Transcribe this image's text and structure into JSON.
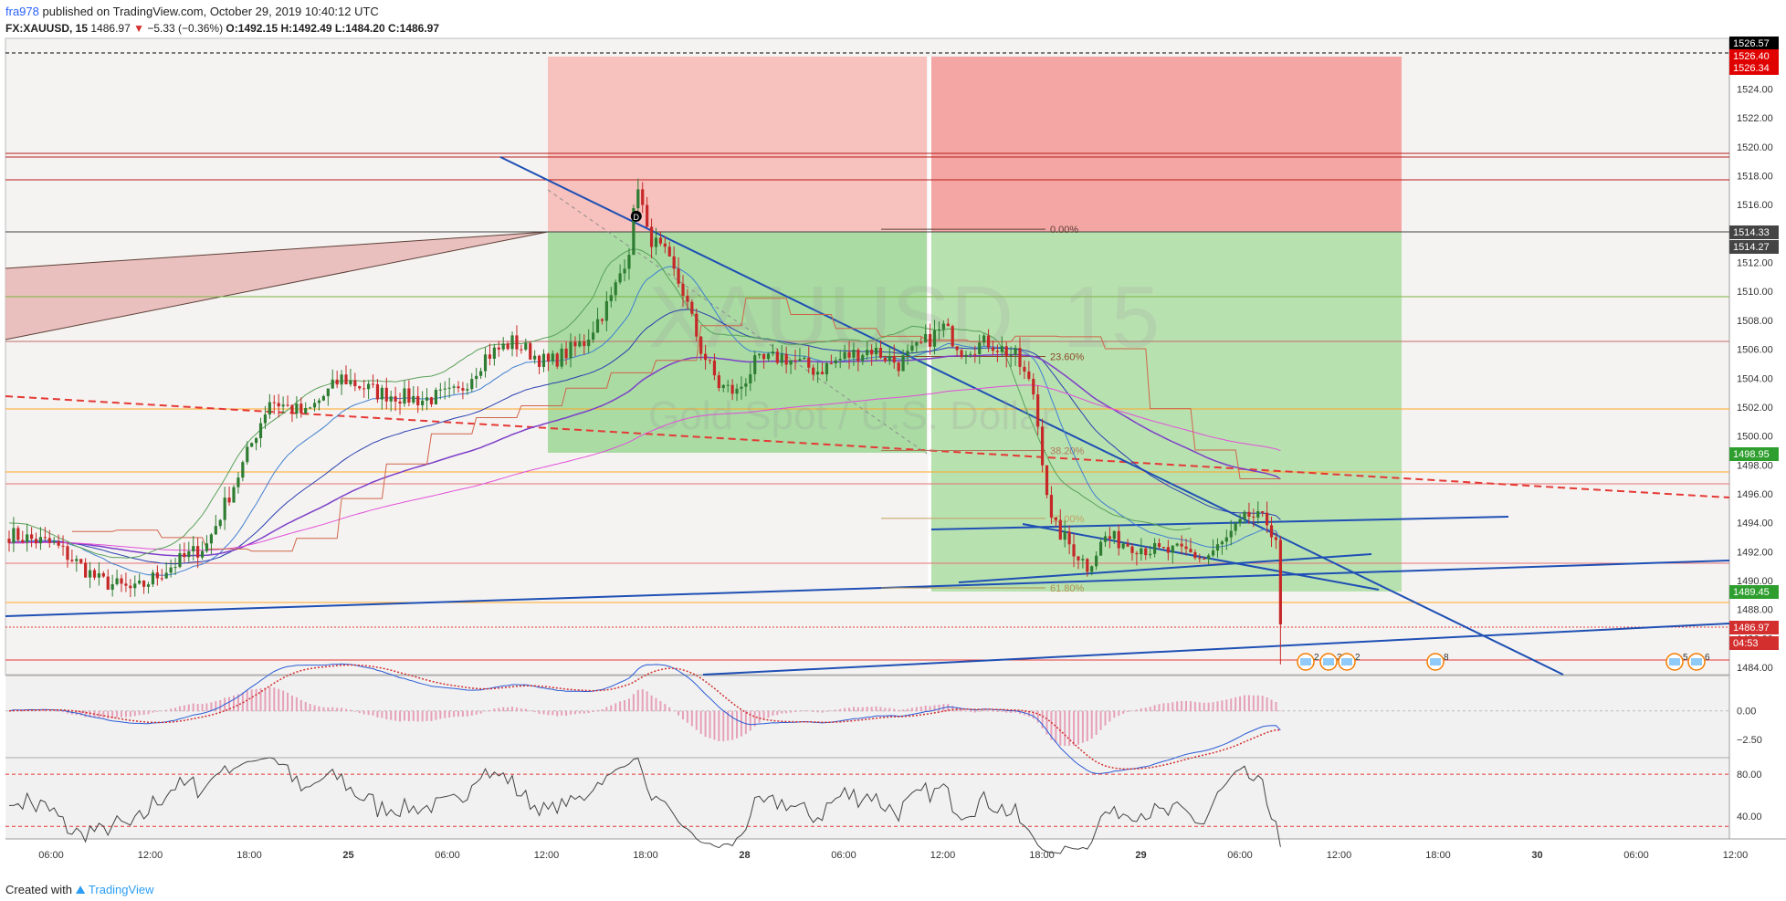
{
  "header": {
    "publisher": "fra978",
    "published_text": "published on TradingView.com, October 29, 2019 10:40:12 UTC",
    "symbol": "FX:XAUUSD, 15",
    "last": "1486.97",
    "change": "−5.33 (−0.36%)",
    "o_label": "O:",
    "o": "1492.15",
    "h_label": "H:",
    "h": "1492.49",
    "l_label": "L:",
    "l": "1484.20",
    "c_label": "C:",
    "c": "1486.97"
  },
  "watermark": {
    "symbol": "XAUUSD, 15",
    "desc": "Gold Spot / U.S. Dollar"
  },
  "footer": {
    "created_with": "Created with",
    "brand": "TradingView"
  },
  "colors": {
    "bull": "#2e7d32",
    "bear": "#c62828",
    "trend": "#1e4fb4",
    "stop_zone": "#f4a6a4",
    "target_zone": "#a9dba3",
    "rsi_line": "#444444"
  },
  "chart_data": [
    {
      "type": "candlestick",
      "pane": "price",
      "x_tick_labels": [
        "06:00",
        "12:00",
        "18:00",
        "25",
        "06:00",
        "12:00",
        "18:00",
        "28",
        "06:00",
        "12:00",
        "18:00",
        "29",
        "06:00",
        "12:00",
        "18:00",
        "30",
        "06:00",
        "12:00"
      ],
      "y_tick_labels": [
        "1484.00",
        "1486.00",
        "1488.00",
        "1490.00",
        "1492.00",
        "1494.00",
        "1496.00",
        "1498.00",
        "1500.00",
        "1502.00",
        "1504.00",
        "1506.00",
        "1508.00",
        "1510.00",
        "1512.00",
        "1516.00",
        "1518.00",
        "1520.00",
        "1522.00",
        "1524.00"
      ],
      "ylim": [
        1483.5,
        1527.5
      ],
      "price_labels": [
        {
          "value": "1526.57",
          "color": "#000000"
        },
        {
          "value": "1526.40",
          "color": "#e00000"
        },
        {
          "value": "1526.34",
          "color": "#e00000"
        },
        {
          "value": "1514.33",
          "color": "#444444"
        },
        {
          "value": "1514.27",
          "color": "#444444"
        },
        {
          "value": "1498.95",
          "color": "#2e9e2e"
        },
        {
          "value": "1489.45",
          "color": "#2e9e2e"
        },
        {
          "value": "1486.97",
          "color": "#d32f2f"
        },
        {
          "value": "04:53",
          "color": "#d32f2f"
        }
      ],
      "fib_levels": [
        {
          "label": "0.00%",
          "value": 1514.3
        },
        {
          "label": "23.60%",
          "value": 1505.5
        },
        {
          "label": "38.20%",
          "value": 1499.0
        },
        {
          "label": "50.00%",
          "value": 1494.3
        },
        {
          "label": "61.80%",
          "value": 1489.5
        }
      ],
      "last_price": 1486.97,
      "high": 1517.8,
      "low": 1484.2,
      "marker": "D",
      "event_badges": [
        "2",
        "3",
        "2",
        "8",
        "5",
        "6"
      ]
    },
    {
      "type": "line",
      "pane": "macd",
      "y_tick_labels": [
        "0.00",
        "−2.50"
      ],
      "ylim": [
        -4.0,
        3.0
      ]
    },
    {
      "type": "line",
      "pane": "rsi",
      "y_tick_labels": [
        "80.00",
        "40.00"
      ],
      "ylim": [
        18,
        95
      ],
      "bands": [
        80,
        30
      ]
    }
  ]
}
